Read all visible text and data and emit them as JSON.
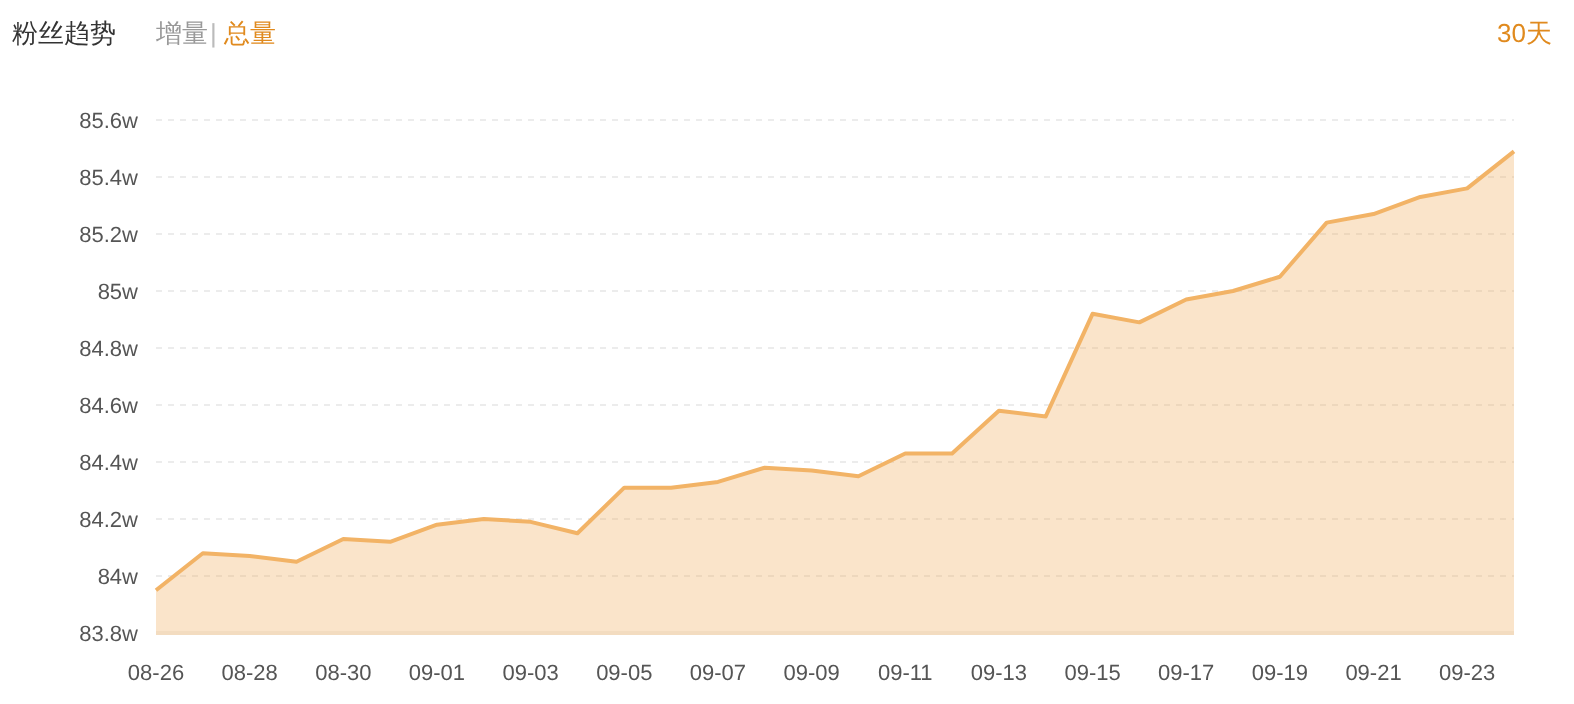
{
  "chart_data": {
    "type": "area",
    "title": "粉丝趋势",
    "annotations": [
      "增量",
      "|",
      "总量",
      "30天"
    ],
    "categories": [
      "08-26",
      null,
      "08-28",
      null,
      "08-30",
      null,
      "09-01",
      null,
      "09-03",
      null,
      "09-05",
      null,
      "09-07",
      null,
      "09-09",
      null,
      "09-11",
      null,
      "09-13",
      null,
      "09-15",
      null,
      "09-17",
      null,
      "09-19",
      null,
      "09-21",
      null,
      "09-23",
      null
    ],
    "series": [
      {
        "color": "#f2b366",
        "values": [
          83.95,
          84.08,
          84.07,
          84.05,
          84.13,
          84.12,
          84.18,
          84.2,
          84.19,
          84.15,
          84.31,
          84.31,
          84.33,
          84.38,
          84.37,
          84.35,
          84.43,
          84.43,
          84.58,
          84.56,
          84.92,
          84.89,
          84.97,
          85.0,
          85.05,
          85.24,
          85.27,
          85.33,
          85.36,
          85.49
        ]
      }
    ],
    "ylim": [
      83.8,
      85.6
    ],
    "yticks": [
      {
        "value": 83.8,
        "label": "83.8w"
      },
      {
        "value": 84,
        "label": "84w"
      },
      {
        "value": 84.2,
        "label": "84.2w"
      },
      {
        "value": 84.4,
        "label": "84.4w"
      },
      {
        "value": 84.6,
        "label": "84.6w"
      },
      {
        "value": 84.8,
        "label": "84.8w"
      },
      {
        "value": 85,
        "label": "85w"
      },
      {
        "value": 85.2,
        "label": "85.2w"
      },
      {
        "value": 85.4,
        "label": "85.4w"
      },
      {
        "value": 85.6,
        "label": "85.6w"
      }
    ],
    "grid": "y",
    "marker": "none",
    "line_style": "solid"
  }
}
